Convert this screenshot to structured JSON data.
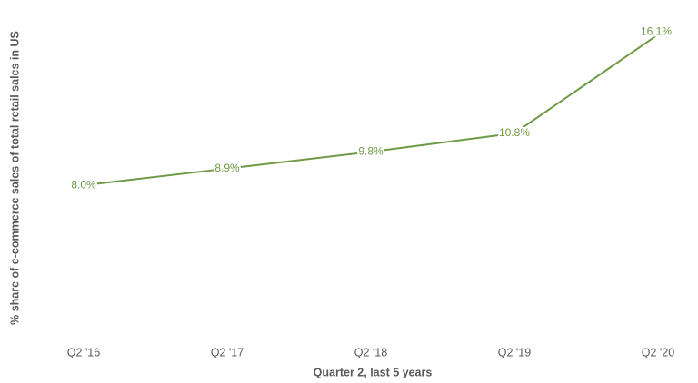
{
  "chart_data": {
    "type": "line",
    "categories": [
      "Q2 '16",
      "Q2 '17",
      "Q2 '18",
      "Q2 '19",
      "Q2 '20"
    ],
    "values": [
      8.0,
      8.9,
      9.8,
      10.8,
      16.1
    ],
    "value_labels": [
      "8.0%",
      "8.9%",
      "9.8%",
      "10.8%",
      "16.1%"
    ],
    "color": "#6f9a45",
    "ylim": [
      0,
      16.5
    ],
    "xlabel": "Quarter 2, last 5 years",
    "ylabel": "% share of e-commerce sales of total retail sales in US"
  }
}
